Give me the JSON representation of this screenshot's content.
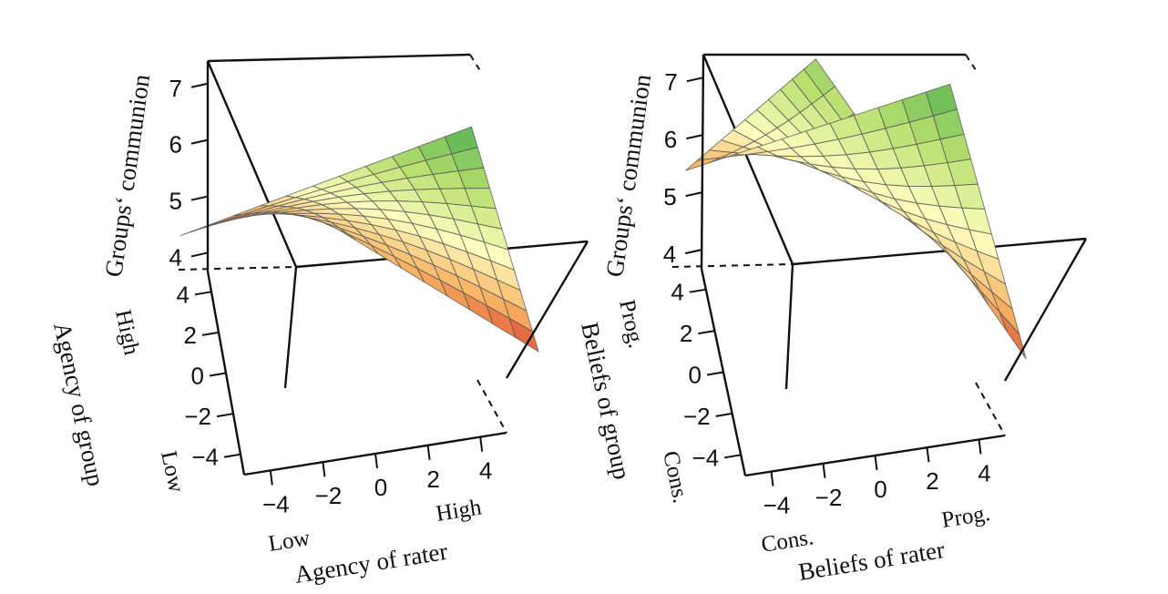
{
  "chart_data": [
    {
      "type": "surface",
      "zlabel": "Groups‘ communion",
      "xlabel": "Agency of rater",
      "ylabel": "Agency of group",
      "x_end_labels": [
        "Low",
        "High"
      ],
      "y_end_labels": [
        "Low",
        "High"
      ],
      "x_ticks": [
        -4,
        -2,
        0,
        2,
        4
      ],
      "y_ticks": [
        -4,
        -2,
        0,
        2,
        4
      ],
      "z_ticks": [
        4,
        5,
        6,
        7
      ],
      "xlim": [
        -5,
        5
      ],
      "ylim": [
        -5,
        5
      ],
      "zlim": [
        3.7,
        7.4
      ],
      "grid_n": 11,
      "corner_values": {
        "x_low_y_low": 4.9,
        "x_high_y_low": 4.0,
        "x_low_y_high": 3.9,
        "x_high_y_high": 7.3
      },
      "colors": {
        "low": "#d73027",
        "mid_low": "#f7ae5f",
        "mid": "#ffffbf",
        "mid_high": "#b9df6f",
        "high": "#4caf50"
      }
    },
    {
      "type": "surface",
      "zlabel": "Groups‘ communion",
      "xlabel": "Beliefs of rater",
      "ylabel": "Beliefs of group",
      "x_end_labels": [
        "Cons.",
        "Prog."
      ],
      "y_end_labels": [
        "Cons.",
        "Prog."
      ],
      "x_ticks": [
        -4,
        -2,
        0,
        2,
        4
      ],
      "y_ticks": [
        -4,
        -2,
        0,
        2,
        4
      ],
      "z_ticks": [
        4,
        5,
        6,
        7
      ],
      "xlim": [
        -5,
        5
      ],
      "ylim": [
        -5,
        5
      ],
      "zlim": [
        3.7,
        7.4
      ],
      "grid_n": 11,
      "corner_values": {
        "x_low_y_low": 6.7,
        "x_high_y_low": 4.0,
        "x_low_y_high": 4.4,
        "x_high_y_high": 7.2
      },
      "colors": {
        "low": "#d73027",
        "mid_low": "#f7ae5f",
        "mid": "#ffffbf",
        "mid_high": "#b9df6f",
        "high": "#4caf50"
      }
    }
  ]
}
